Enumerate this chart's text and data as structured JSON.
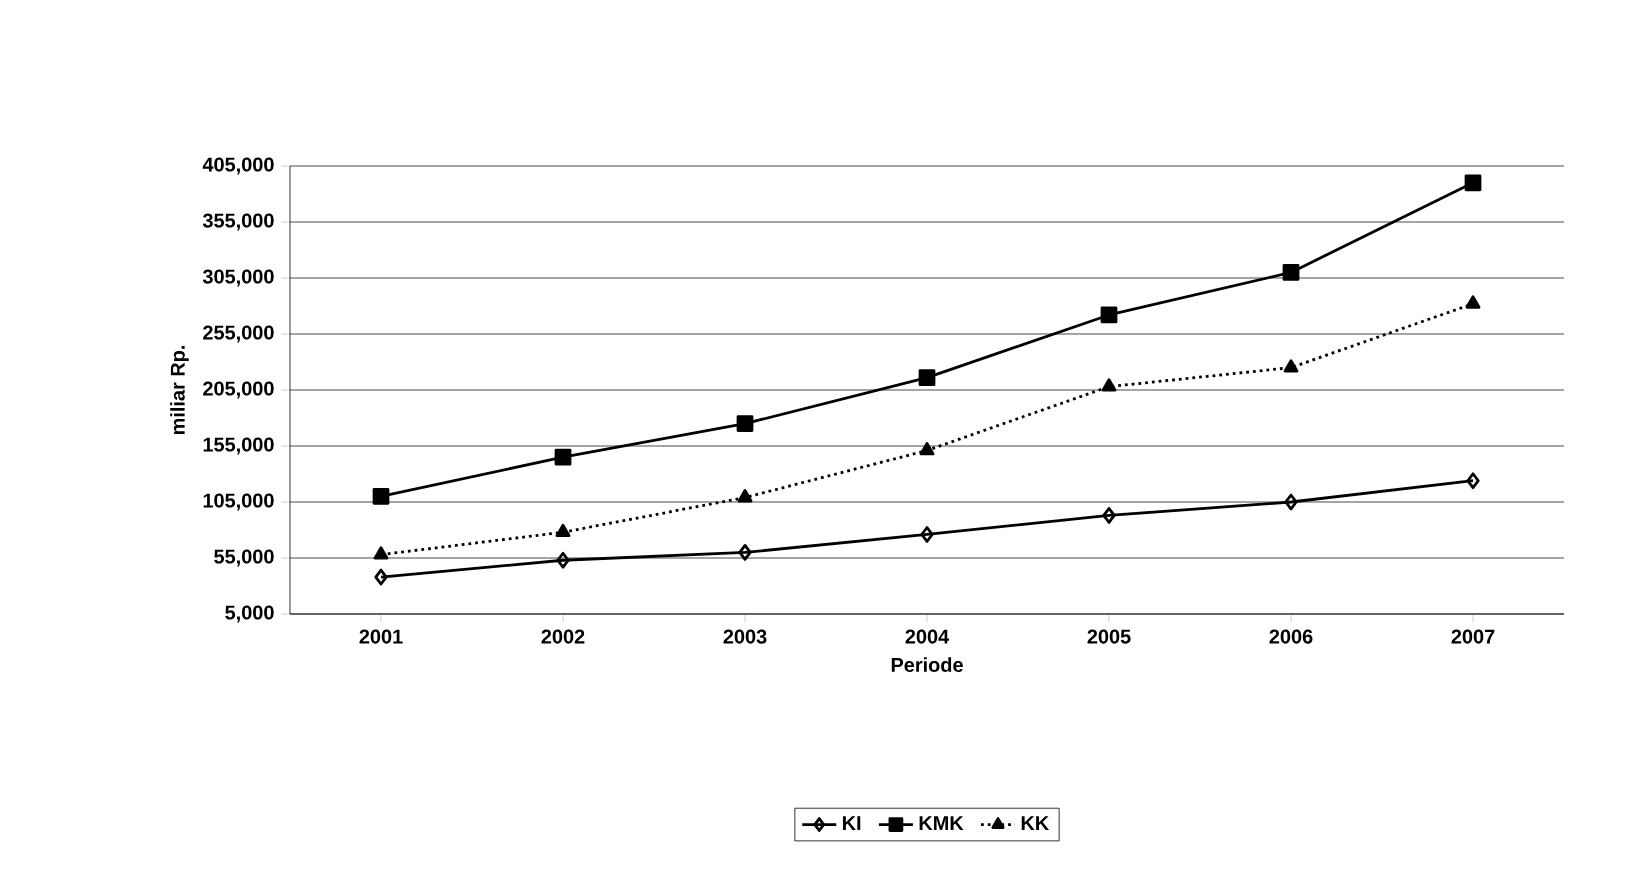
{
  "chart_data": {
    "type": "line",
    "xlabel": "Periode",
    "ylabel": "miliar Rp.",
    "categories": [
      "2001",
      "2002",
      "2003",
      "2004",
      "2005",
      "2006",
      "2007"
    ],
    "series": [
      {
        "name": "KI",
        "color": "#000000",
        "marker": "diamond",
        "line_style": "solid",
        "values": [
          38000,
          53000,
          60000,
          76000,
          93000,
          105000,
          124000
        ]
      },
      {
        "name": "KMK",
        "color": "#000000",
        "marker": "square",
        "line_style": "solid",
        "values": [
          110000,
          145000,
          175000,
          216000,
          272000,
          310000,
          390000
        ]
      },
      {
        "name": "KK",
        "color": "#000000",
        "marker": "triangle",
        "line_style": "dotted",
        "values": [
          58000,
          78000,
          109000,
          151000,
          208000,
          225000,
          282000
        ]
      }
    ],
    "ylim": [
      5000,
      405000
    ],
    "yticks": [
      {
        "value": 5000,
        "label": "5,000"
      },
      {
        "value": 55000,
        "label": "55,000"
      },
      {
        "value": 105000,
        "label": "105,000"
      },
      {
        "value": 155000,
        "label": "155,000"
      },
      {
        "value": 205000,
        "label": "205,000"
      },
      {
        "value": 255000,
        "label": "255,000"
      },
      {
        "value": 305000,
        "label": "305,000"
      },
      {
        "value": 355000,
        "label": "355,000"
      },
      {
        "value": 405000,
        "label": "405,000"
      }
    ],
    "grid": "y",
    "legend": "bottom"
  }
}
